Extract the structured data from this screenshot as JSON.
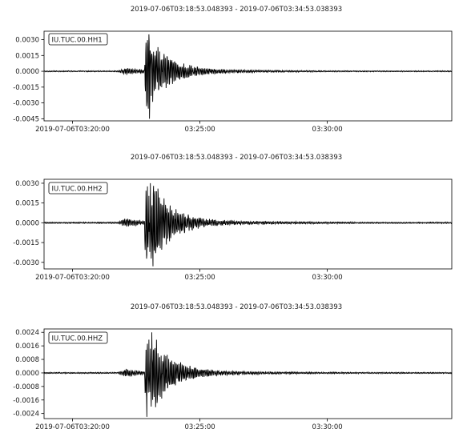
{
  "figure": {
    "background": "#ffffff",
    "trace_color": "#000000",
    "axes_color": "#000000"
  },
  "chart_data": [
    {
      "type": "line",
      "title": "2019-07-06T03:18:53.048393  -  2019-07-06T03:34:53.038393",
      "legend": "IU.TUC.00.HH1",
      "legend_position": "top-left",
      "grid": false,
      "x_range": [
        "2019-07-06T03:18:53.048393",
        "2019-07-06T03:34:53.038393"
      ],
      "x_ticks": [
        {
          "time": "2019-07-06T03:20:00",
          "label": "2019-07-06T03:20:00"
        },
        {
          "time": "2019-07-06T03:25:00",
          "label": "03:25:00"
        },
        {
          "time": "2019-07-06T03:30:00",
          "label": "03:30:00"
        }
      ],
      "ylim": [
        -0.0047,
        0.0038
      ],
      "y_ticks": [
        "0.0030",
        "0.0015",
        "0.0000",
        "-0.0015",
        "-0.0030",
        "-0.0045"
      ],
      "y_tick_values": [
        0.003,
        0.0015,
        0.0,
        -0.0015,
        -0.003,
        -0.0045
      ],
      "peak_max": 0.0035,
      "peak_min": -0.0045
    },
    {
      "type": "line",
      "title": "2019-07-06T03:18:53.048393  -  2019-07-06T03:34:53.038393",
      "legend": "IU.TUC.00.HH2",
      "legend_position": "top-left",
      "grid": false,
      "x_range": [
        "2019-07-06T03:18:53.048393",
        "2019-07-06T03:34:53.038393"
      ],
      "x_ticks": [
        {
          "time": "2019-07-06T03:20:00",
          "label": "2019-07-06T03:20:00"
        },
        {
          "time": "2019-07-06T03:25:00",
          "label": "03:25:00"
        },
        {
          "time": "2019-07-06T03:30:00",
          "label": "03:30:00"
        }
      ],
      "ylim": [
        -0.0035,
        0.0033
      ],
      "y_ticks": [
        "0.0030",
        "0.0015",
        "0.0000",
        "-0.0015",
        "-0.0030"
      ],
      "y_tick_values": [
        0.003,
        0.0015,
        0.0,
        -0.0015,
        -0.003
      ],
      "peak_max": 0.003,
      "peak_min": -0.0033
    },
    {
      "type": "line",
      "title": "2019-07-06T03:18:53.048393  -  2019-07-06T03:34:53.038393",
      "legend": "IU.TUC.00.HHZ",
      "legend_position": "top-left",
      "grid": false,
      "x_range": [
        "2019-07-06T03:18:53.048393",
        "2019-07-06T03:34:53.038393"
      ],
      "x_ticks": [
        {
          "time": "2019-07-06T03:20:00",
          "label": "2019-07-06T03:20:00"
        },
        {
          "time": "2019-07-06T03:25:00",
          "label": "03:25:00"
        },
        {
          "time": "2019-07-06T03:30:00",
          "label": "03:30:00"
        }
      ],
      "ylim": [
        -0.0027,
        0.0026
      ],
      "y_ticks": [
        "0.0024",
        "0.0016",
        "0.0008",
        "0.0000",
        "-0.0008",
        "-0.0016",
        "-0.0024"
      ],
      "y_tick_values": [
        0.0024,
        0.0016,
        0.0008,
        0.0,
        -0.0008,
        -0.0016,
        -0.0024
      ],
      "peak_max": 0.0024,
      "peak_min": -0.0026
    }
  ]
}
